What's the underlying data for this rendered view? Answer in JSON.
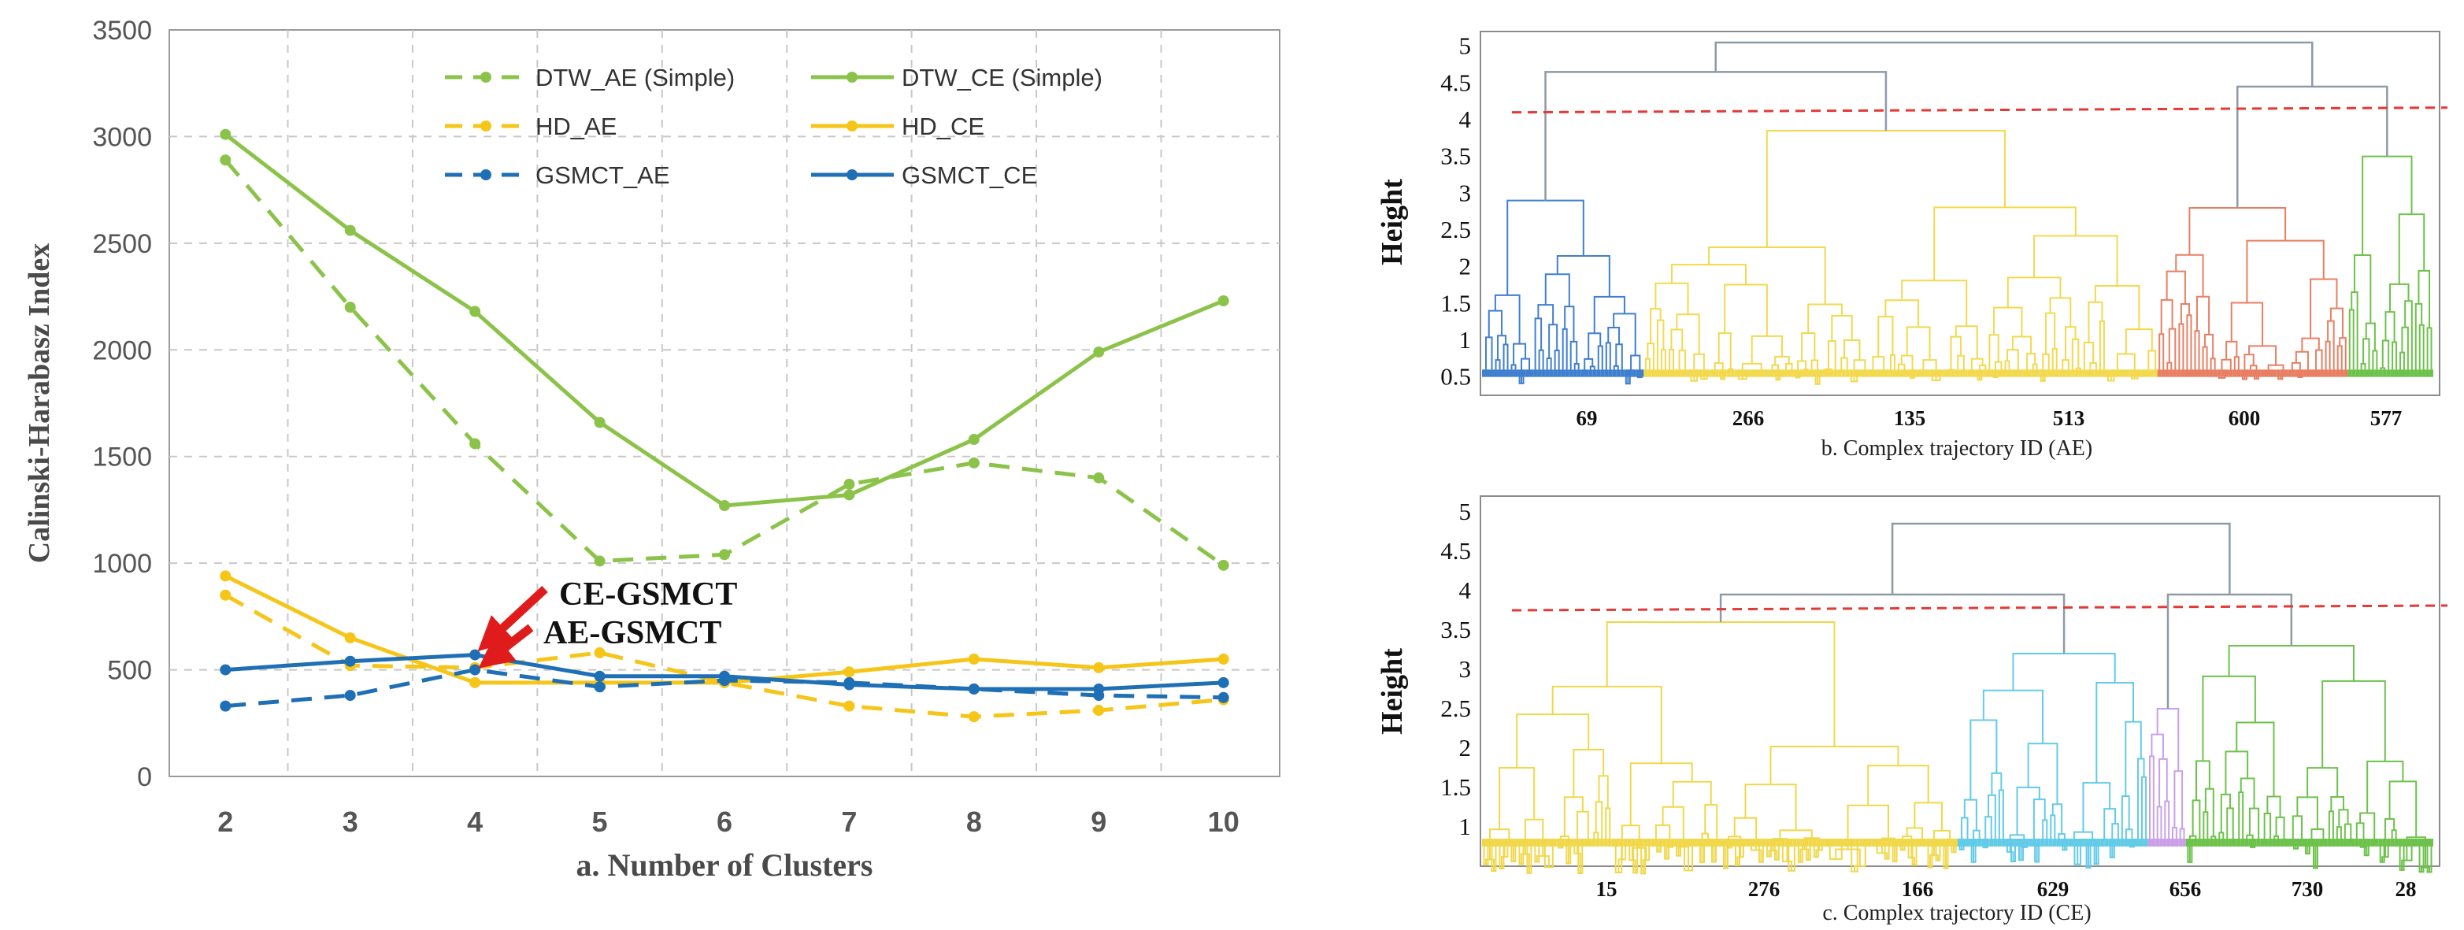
{
  "chart_data": [
    {
      "type": "line",
      "xlabel": "a. Number  of Clusters",
      "ylabel": "Calinski-Harabasz  Index",
      "x": [
        2,
        3,
        4,
        5,
        6,
        7,
        8,
        9,
        10
      ],
      "ylim": [
        0,
        3500
      ],
      "yticks": [
        0,
        500,
        1000,
        1500,
        2000,
        2500,
        3000,
        3500
      ],
      "series": [
        {
          "name": "DTW_AE (Simple)",
          "style": "dashed",
          "color": "#8bc34a",
          "values": [
            2890,
            2200,
            1560,
            1010,
            1040,
            1370,
            1470,
            1400,
            990
          ]
        },
        {
          "name": "DTW_CE (Simple)",
          "style": "solid",
          "color": "#8bc34a",
          "values": [
            3010,
            2560,
            2180,
            1660,
            1270,
            1320,
            1580,
            1990,
            2230
          ]
        },
        {
          "name": "HD_AE",
          "style": "dashed",
          "color": "#f5c518",
          "values": [
            850,
            520,
            510,
            580,
            440,
            330,
            280,
            310,
            360
          ]
        },
        {
          "name": "HD_CE",
          "style": "solid",
          "color": "#f5c518",
          "values": [
            940,
            650,
            440,
            440,
            440,
            490,
            550,
            510,
            550
          ]
        },
        {
          "name": "GSMCT_AE",
          "style": "dashed",
          "color": "#1f6fb5",
          "values": [
            330,
            380,
            500,
            420,
            450,
            440,
            410,
            380,
            370
          ]
        },
        {
          "name": "GSMCT_CE",
          "style": "solid",
          "color": "#1f6fb5",
          "values": [
            500,
            540,
            570,
            470,
            470,
            430,
            410,
            410,
            440
          ]
        }
      ],
      "annotations": [
        {
          "text": "CE-GSMCT",
          "target_x": 4,
          "target_y": 570
        },
        {
          "text": "AE-GSMCT",
          "target_x": 4,
          "target_y": 500
        }
      ]
    },
    {
      "type": "dendrogram",
      "ylabel": "Height",
      "caption": "b. Complex trajectory ID (AE)",
      "yticks": [
        "0.5",
        "1",
        "1.5",
        "2",
        "2.5",
        "3",
        "3.5",
        "4",
        "4.5",
        "5"
      ],
      "ylim": [
        0.25,
        5.2
      ],
      "cut_height": 4.1,
      "leaf_labels": [
        "69",
        "266",
        "135",
        "513",
        "600",
        "577"
      ],
      "clusters": [
        {
          "color": "#3f7fd0",
          "fraction": 0.17,
          "merge": 2.9
        },
        {
          "color": "#f2d94e",
          "fraction": 0.54,
          "merge": 3.85
        },
        {
          "color": "#e87f62",
          "fraction": 0.2,
          "merge": 2.8
        },
        {
          "color": "#6cc24a",
          "fraction": 0.09,
          "merge": 3.5
        }
      ]
    },
    {
      "type": "dendrogram",
      "ylabel": "Height",
      "caption": "c. Complex trajectory ID (CE)",
      "yticks": [
        "1",
        "1.5",
        "2",
        "2.5",
        "3",
        "3.5",
        "4",
        "4.5",
        "5"
      ],
      "ylim": [
        0.5,
        5.2
      ],
      "cut_height": 3.75,
      "leaf_labels": [
        "15",
        "276",
        "166",
        "629",
        "656",
        "730",
        "28"
      ],
      "clusters": [
        {
          "color": "#f0d84a",
          "fraction": 0.5,
          "merge": 3.6
        },
        {
          "color": "#62cbe8",
          "fraction": 0.2,
          "merge": 3.2
        },
        {
          "color": "#c9a0e8",
          "fraction": 0.04,
          "merge": 2.5
        },
        {
          "color": "#6cc24a",
          "fraction": 0.26,
          "merge": 3.3
        }
      ]
    }
  ]
}
